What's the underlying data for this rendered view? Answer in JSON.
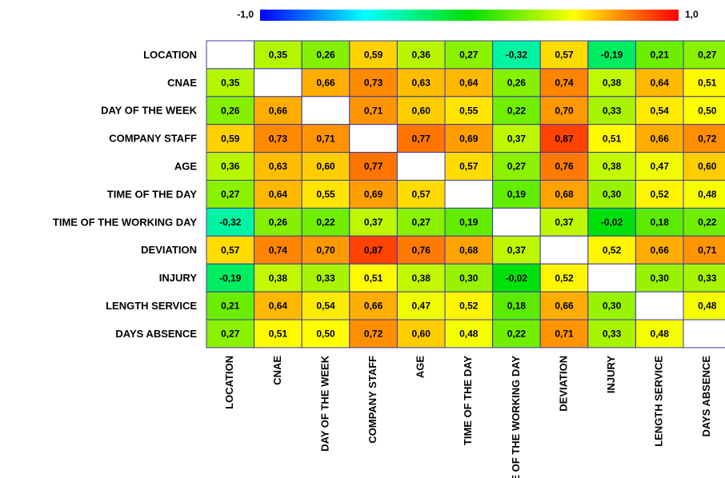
{
  "chart_data": {
    "type": "heatmap",
    "categories": [
      "LOCATION",
      "CNAE",
      "DAY OF THE WEEK",
      "COMPANY STAFF",
      "AGE",
      "TIME OF THE DAY",
      "TIME OF THE WORKING DAY",
      "DEVIATION",
      "INJURY",
      "LENGTH SERVICE",
      "DAYS ABSENCE"
    ],
    "values": [
      [
        null,
        0.35,
        0.26,
        0.59,
        0.36,
        0.27,
        -0.32,
        0.57,
        -0.19,
        0.21,
        0.27
      ],
      [
        0.35,
        null,
        0.66,
        0.73,
        0.63,
        0.64,
        0.26,
        0.74,
        0.38,
        0.64,
        0.51
      ],
      [
        0.26,
        0.66,
        null,
        0.71,
        0.6,
        0.55,
        0.22,
        0.7,
        0.33,
        0.54,
        0.5
      ],
      [
        0.59,
        0.73,
        0.71,
        null,
        0.77,
        0.69,
        0.37,
        0.87,
        0.51,
        0.66,
        0.72
      ],
      [
        0.36,
        0.63,
        0.6,
        0.77,
        null,
        0.57,
        0.27,
        0.76,
        0.38,
        0.47,
        0.6
      ],
      [
        0.27,
        0.64,
        0.55,
        0.69,
        0.57,
        null,
        0.19,
        0.68,
        0.3,
        0.52,
        0.48
      ],
      [
        -0.32,
        0.26,
        0.22,
        0.37,
        0.27,
        0.19,
        null,
        0.37,
        -0.02,
        0.18,
        0.22
      ],
      [
        0.57,
        0.74,
        0.7,
        0.87,
        0.76,
        0.68,
        0.37,
        null,
        0.52,
        0.66,
        0.71
      ],
      [
        -0.19,
        0.38,
        0.33,
        0.51,
        0.38,
        0.3,
        -0.02,
        0.52,
        null,
        0.3,
        0.33
      ],
      [
        0.21,
        0.64,
        0.54,
        0.66,
        0.47,
        0.52,
        0.18,
        0.66,
        0.3,
        null,
        0.48
      ],
      [
        0.27,
        0.51,
        0.5,
        0.72,
        0.6,
        0.48,
        0.22,
        0.71,
        0.33,
        0.48,
        null
      ]
    ],
    "value_labels": [
      [
        null,
        "0,35",
        "0,26",
        "0,59",
        "0,36",
        "0,27",
        "-0,32",
        "0,57",
        "-0,19",
        "0,21",
        "0,27"
      ],
      [
        "0,35",
        null,
        "0,66",
        "0,73",
        "0,63",
        "0,64",
        "0,26",
        "0,74",
        "0,38",
        "0,64",
        "0,51"
      ],
      [
        "0,26",
        "0,66",
        null,
        "0,71",
        "0,60",
        "0,55",
        "0,22",
        "0,70",
        "0,33",
        "0,54",
        "0,50"
      ],
      [
        "0,59",
        "0,73",
        "0,71",
        null,
        "0,77",
        "0,69",
        "0,37",
        "0,87",
        "0,51",
        "0,66",
        "0,72"
      ],
      [
        "0,36",
        "0,63",
        "0,60",
        "0,77",
        null,
        "0,57",
        "0,27",
        "0,76",
        "0,38",
        "0,47",
        "0,60"
      ],
      [
        "0,27",
        "0,64",
        "0,55",
        "0,69",
        "0,57",
        null,
        "0,19",
        "0,68",
        "0,30",
        "0,52",
        "0,48"
      ],
      [
        "-0,32",
        "0,26",
        "0,22",
        "0,37",
        "0,27",
        "0,19",
        null,
        "0,37",
        "-0,02",
        "0,18",
        "0,22"
      ],
      [
        "0,57",
        "0,74",
        "0,70",
        "0,87",
        "0,76",
        "0,68",
        "0,37",
        null,
        "0,52",
        "0,66",
        "0,71"
      ],
      [
        "-0,19",
        "0,38",
        "0,33",
        "0,51",
        "0,38",
        "0,30",
        "-0,02",
        "0,52",
        null,
        "0,30",
        "0,33"
      ],
      [
        "0,21",
        "0,64",
        "0,54",
        "0,66",
        "0,47",
        "0,52",
        "0,18",
        "0,66",
        "0,30",
        null,
        "0,48"
      ],
      [
        "0,27",
        "0,51",
        "0,50",
        "0,72",
        "0,60",
        "0,48",
        "0,22",
        "0,71",
        "0,33",
        "0,48",
        null
      ]
    ],
    "zlim": [
      -1,
      1
    ],
    "zticks": [
      {
        "value": -1,
        "label": "-1,0"
      },
      {
        "value": 1,
        "label": "1,0"
      }
    ],
    "colorscale": [
      [
        -1,
        "#0000ff"
      ],
      [
        -0.5,
        "#00ffff"
      ],
      [
        0,
        "#00e000"
      ],
      [
        0.5,
        "#ffff00"
      ],
      [
        1,
        "#ff0000"
      ]
    ]
  }
}
